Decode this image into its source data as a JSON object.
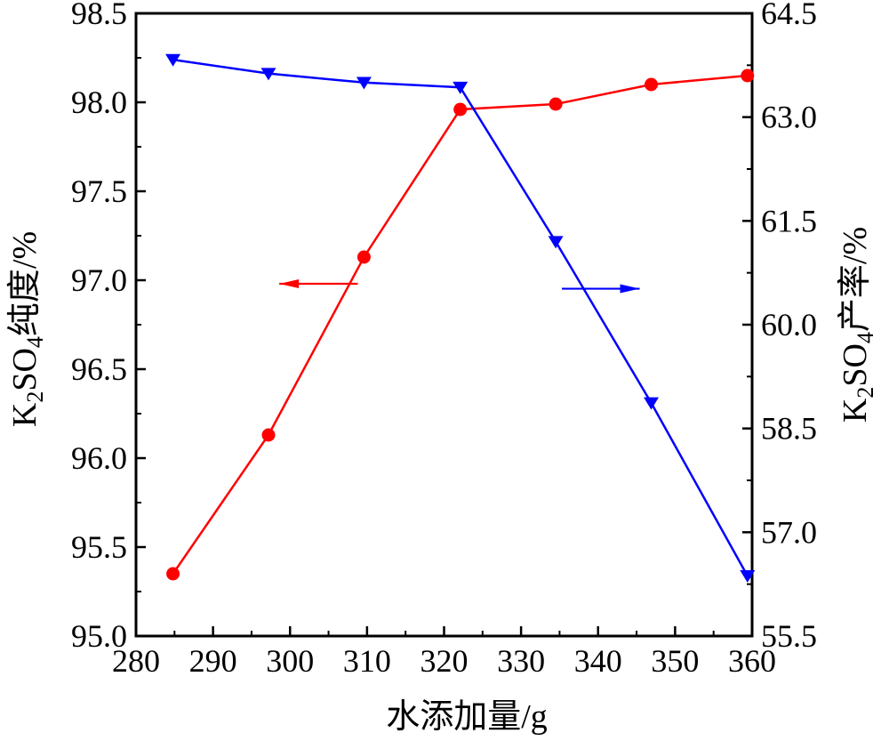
{
  "chart_data": {
    "type": "line",
    "xlabel": "水添加量/g",
    "ylabel_left": {
      "prefix": "K",
      "sub1": "2",
      "mid": "SO",
      "sub2": "4",
      "suffix": "纯度/%"
    },
    "ylabel_right": {
      "prefix": "K",
      "sub1": "2",
      "mid": "SO",
      "sub2": "4",
      "suffix": "产率/%"
    },
    "xlim": [
      280,
      360
    ],
    "ylim_left": [
      95.0,
      98.5
    ],
    "ylim_right": [
      55.5,
      64.5
    ],
    "x_ticks": [
      "280",
      "290",
      "300",
      "310",
      "320",
      "330",
      "340",
      "350",
      "360"
    ],
    "y_ticks_left": [
      "95.0",
      "95.5",
      "96.0",
      "96.5",
      "97.0",
      "97.5",
      "98.0",
      "98.5"
    ],
    "y_ticks_right": [
      "55.5",
      "57.0",
      "58.5",
      "60.0",
      "61.5",
      "63.0",
      "64.5"
    ],
    "series": [
      {
        "axis": "left",
        "color": "#ff0000",
        "marker": "circle",
        "x": [
          284.8,
          297.2,
          309.6,
          322.1,
          334.5,
          346.9,
          359.4
        ],
        "y": [
          95.35,
          96.13,
          97.13,
          97.96,
          97.99,
          98.1,
          98.15
        ]
      },
      {
        "axis": "right",
        "color": "#0000ff",
        "marker": "triangle-down",
        "x": [
          284.8,
          297.2,
          309.6,
          322.1,
          334.5,
          346.9,
          359.4
        ],
        "y": [
          63.83,
          63.63,
          63.5,
          63.43,
          61.2,
          58.87,
          56.37
        ]
      }
    ],
    "annotations": [
      {
        "type": "arrow",
        "direction": "left",
        "color": "#ff0000",
        "x_from": 308.8,
        "x_to": 298.6,
        "y": 96.98,
        "axis": "left"
      },
      {
        "type": "arrow",
        "direction": "right",
        "color": "#0000ff",
        "x_from": 335.3,
        "x_to": 345.4,
        "y": 60.52,
        "axis": "right"
      }
    ]
  }
}
